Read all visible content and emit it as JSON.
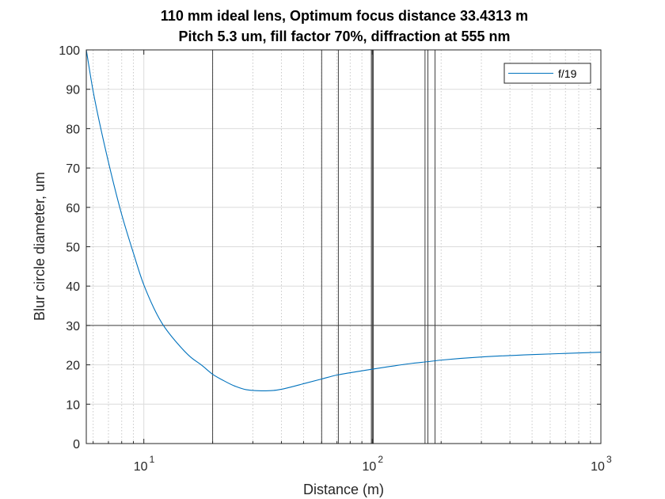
{
  "chart_data": {
    "type": "line",
    "title": "110 mm ideal lens, Optimum focus distance 33.4313 m",
    "subtitle": "Pitch 5.3 um, fill factor 70%, diffraction at 555 nm",
    "xlabel": "Distance (m)",
    "ylabel": "Blur circle diameter, um",
    "xscale": "log",
    "xlim": [
      5.6,
      1000
    ],
    "ylim": [
      0,
      100
    ],
    "grid": true,
    "legend_position": "top-right",
    "x_ticks": [
      {
        "base": "10",
        "exp": "1",
        "value": 10
      },
      {
        "base": "10",
        "exp": "2",
        "value": 100
      },
      {
        "base": "10",
        "exp": "3",
        "value": 1000
      }
    ],
    "y_ticks": [
      "0",
      "10",
      "20",
      "30",
      "40",
      "50",
      "60",
      "70",
      "80",
      "90",
      "100"
    ],
    "series": [
      {
        "name": "f/19",
        "color": "#0072BD",
        "x": [
          5.6,
          6,
          7,
          8,
          9,
          10,
          12,
          14,
          16,
          18,
          20,
          22,
          25,
          28,
          30,
          33.43,
          37,
          40,
          45,
          50,
          60,
          70,
          80,
          100,
          120,
          150,
          175,
          200,
          300,
          500,
          700,
          1000
        ],
        "y": [
          100,
          89.5,
          71.5,
          58.2,
          48.4,
          40.3,
          30.6,
          25.5,
          22,
          19.8,
          17.6,
          16.2,
          14.6,
          13.7,
          13.5,
          13.4,
          13.5,
          13.8,
          14.5,
          15.2,
          16.4,
          17.4,
          18,
          18.9,
          19.6,
          20.4,
          20.8,
          21.2,
          22,
          22.6,
          22.9,
          23.2
        ]
      }
    ],
    "reference_lines": {
      "vertical_x": [
        20,
        60,
        71,
        99,
        100,
        101,
        170,
        175,
        188
      ],
      "horizontal_y": [
        30
      ]
    }
  }
}
